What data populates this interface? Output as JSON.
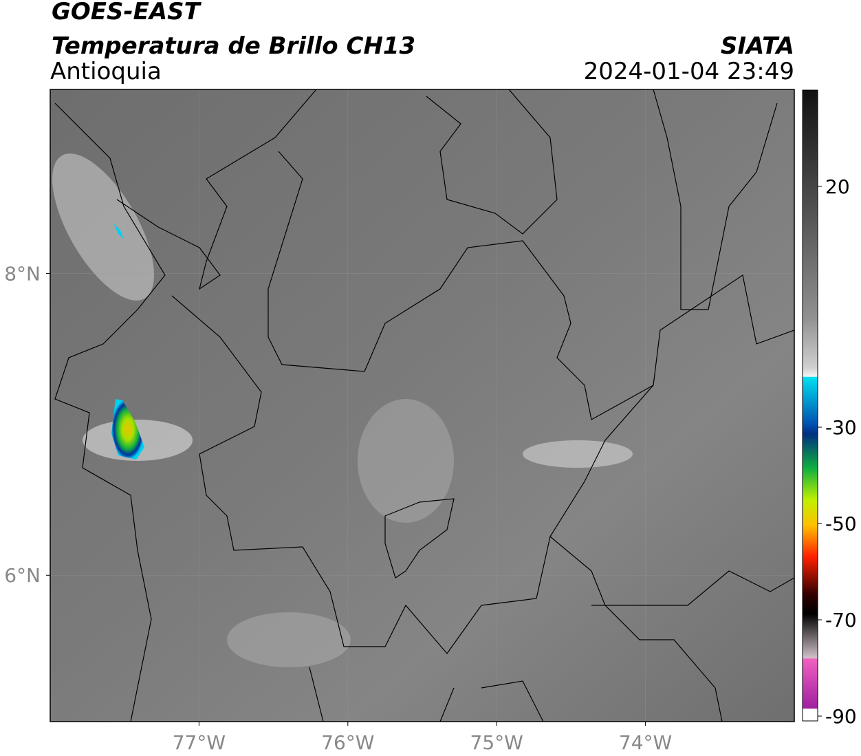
{
  "header": {
    "title": "GOES-EAST",
    "subtitle": "Temperatura de Brillo CH13",
    "region": "Antioquia",
    "source": "SIATA",
    "datetime": "2024-01-04 23:49"
  },
  "map": {
    "xlim": [
      -78,
      -73
    ],
    "ylim": [
      5.03,
      9.22
    ],
    "xticks": [
      {
        "value": -77,
        "label": "77°W"
      },
      {
        "value": -76,
        "label": "76°W"
      },
      {
        "value": -75,
        "label": "75°W"
      },
      {
        "value": -74,
        "label": "74°W"
      }
    ],
    "yticks": [
      {
        "value": 8,
        "label": "8°N"
      },
      {
        "value": 6,
        "label": "6°N"
      }
    ],
    "grid": true
  },
  "colorbar": {
    "clim": [
      -91,
      40
    ],
    "ticks": [
      20,
      -30,
      -50,
      -70,
      -90
    ]
  }
}
